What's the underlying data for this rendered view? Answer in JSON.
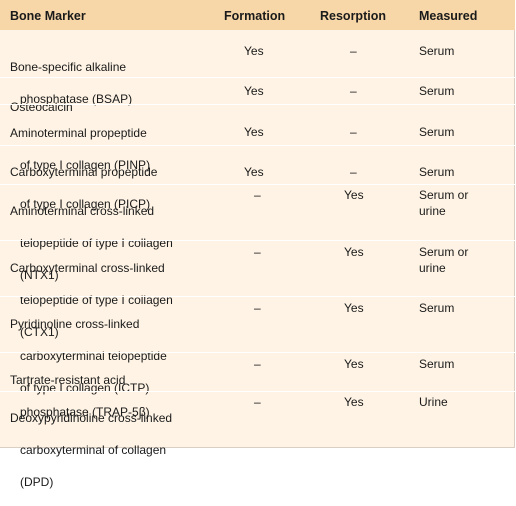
{
  "headers": {
    "marker": "Bone Marker",
    "formation": "Formation",
    "resorption": "Resorption",
    "measured": "Measured"
  },
  "rows": [
    {
      "marker_lines": [
        "Bone-specific alkaline",
        "phosphatase (BSAP)"
      ],
      "formation": "Yes",
      "resorption": "–",
      "measured": "Serum"
    },
    {
      "marker_lines": [
        "Osteocalcin"
      ],
      "formation": "Yes",
      "resorption": "–",
      "measured": "Serum"
    },
    {
      "marker_lines": [
        "Aminoterminal propeptide",
        "of type I collagen (PINP)"
      ],
      "formation": "Yes",
      "resorption": "–",
      "measured": "Serum"
    },
    {
      "marker_lines": [
        "Carboxyterminal propeptide",
        "of type I collagen (PICP)"
      ],
      "formation": "Yes",
      "resorption": "–",
      "measured": "Serum"
    },
    {
      "marker_lines": [
        "Aminoterminal cross-linked",
        "telopeptide of type I collagen",
        "(NTX1)"
      ],
      "formation": "–",
      "resorption": "Yes",
      "measured": "Serum or\nurine"
    },
    {
      "marker_lines": [
        "Carboxyterminal cross-linked",
        "telopeptide of type I collagen",
        "(CTX1)"
      ],
      "formation": "–",
      "resorption": "Yes",
      "measured": "Serum or\nurine"
    },
    {
      "marker_lines": [
        "Pyridinoline cross-linked",
        "carboxyterminal telopeptide",
        "of type I collagen (ICTP)"
      ],
      "formation": "–",
      "resorption": "Yes",
      "measured": "Serum"
    },
    {
      "marker_lines": [
        "Tartrate-resistant acid",
        "phosphatase (TRAP-5β)"
      ],
      "formation": "–",
      "resorption": "Yes",
      "measured": "Serum"
    },
    {
      "marker_lines": [
        "Deoxypyridinoline cross-linked",
        "carboxyterminal of collagen",
        "(DPD)"
      ],
      "formation": "–",
      "resorption": "Yes",
      "measured": "Urine"
    }
  ]
}
